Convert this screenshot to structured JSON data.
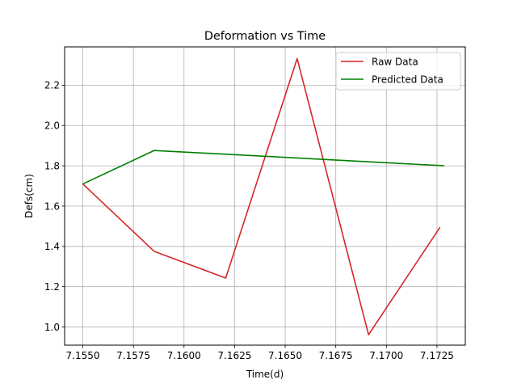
{
  "chart_data": {
    "type": "line",
    "title": "Deformation vs Time",
    "xlabel": "Time(d)",
    "ylabel": "Defs(cm)",
    "xlim": [
      7.1541,
      7.1739
    ],
    "ylim": [
      0.91,
      2.39
    ],
    "xticks": [
      7.155,
      7.1575,
      7.16,
      7.1625,
      7.165,
      7.1675,
      7.17,
      7.1725
    ],
    "xtick_labels": [
      "7.1550",
      "7.1575",
      "7.1600",
      "7.1625",
      "7.1650",
      "7.1675",
      "7.1700",
      "7.1725"
    ],
    "yticks": [
      1.0,
      1.2,
      1.4,
      1.6,
      1.8,
      2.0,
      2.2
    ],
    "ytick_labels": [
      "1.0",
      "1.2",
      "1.4",
      "1.6",
      "1.8",
      "2.0",
      "2.2"
    ],
    "grid": true,
    "legend_position": "top-right",
    "series": [
      {
        "name": "Raw Data",
        "color": "#d62728",
        "x": [
          7.155,
          7.15853,
          7.16206,
          7.16559,
          7.16912,
          7.17265
        ],
        "y": [
          1.71,
          1.375,
          1.243,
          2.332,
          0.962,
          1.495
        ]
      },
      {
        "name": "Predicted Data",
        "color": "#008000",
        "x": [
          7.155,
          7.15853,
          7.17286
        ],
        "y": [
          1.71,
          1.876,
          1.8
        ]
      }
    ]
  }
}
